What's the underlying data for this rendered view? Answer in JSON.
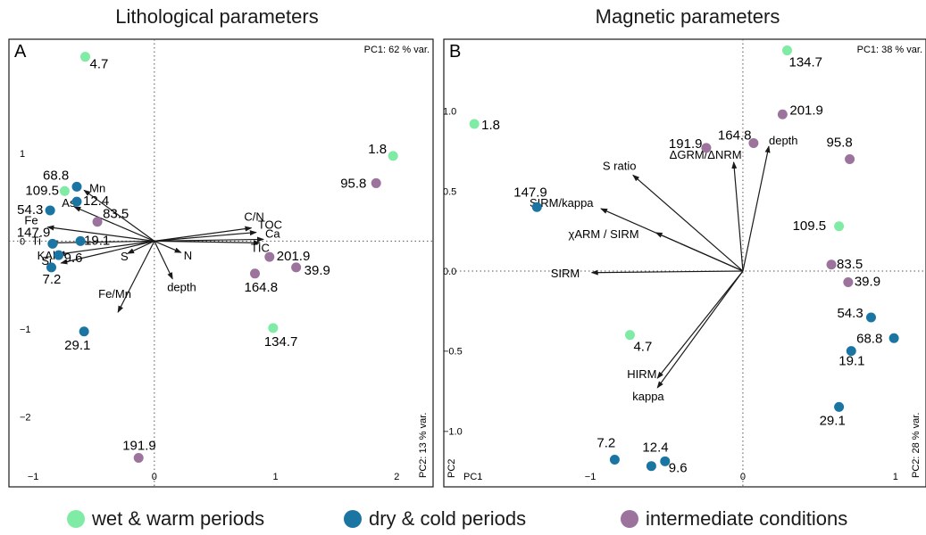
{
  "legend": {
    "wet": {
      "label": "wet & warm periods",
      "color": "#7FEBA5"
    },
    "dry": {
      "label": "dry & cold periods",
      "color": "#1B75A3"
    },
    "int": {
      "label": "intermediate conditions",
      "color": "#9B739C"
    }
  },
  "chart_data": [
    {
      "type": "scatter",
      "panel": "A",
      "title": "Lithological parameters",
      "pc1_label": "PC1: 62 % var.",
      "pc2_label": "PC2: 13 % var.",
      "xlim": [
        -1.2,
        2.3
      ],
      "ylim": [
        -2.8,
        2.3
      ],
      "xticks": [
        {
          "v": -1,
          "t": "−1"
        },
        {
          "v": 0,
          "t": "0"
        },
        {
          "v": 1,
          "t": "1"
        },
        {
          "v": 2,
          "t": "2"
        }
      ],
      "yticks": [
        {
          "v": 1,
          "t": "1"
        },
        {
          "v": 0,
          "t": "0"
        },
        {
          "v": -1,
          "t": "−1"
        },
        {
          "v": -2,
          "t": "−2"
        }
      ],
      "points": [
        {
          "label": "4.7",
          "x": -0.57,
          "y": 2.1,
          "group": "wet"
        },
        {
          "label": "1.8",
          "x": 1.97,
          "y": 0.97,
          "group": "wet"
        },
        {
          "label": "109.5",
          "x": -0.74,
          "y": 0.57,
          "group": "wet"
        },
        {
          "label": "134.7",
          "x": 0.98,
          "y": -0.99,
          "group": "wet"
        },
        {
          "label": "68.8",
          "x": -0.64,
          "y": 0.62,
          "group": "dry"
        },
        {
          "label": "54.3",
          "x": -0.86,
          "y": 0.35,
          "group": "dry"
        },
        {
          "label": "12.4",
          "x": -0.64,
          "y": 0.45,
          "group": "dry"
        },
        {
          "label": "147.9",
          "x": -0.84,
          "y": -0.03,
          "group": "dry"
        },
        {
          "label": "19.1",
          "x": -0.61,
          "y": 0.0,
          "group": "dry"
        },
        {
          "label": "9.6",
          "x": -0.79,
          "y": -0.16,
          "group": "dry"
        },
        {
          "label": "7.2",
          "x": -0.85,
          "y": -0.3,
          "group": "dry"
        },
        {
          "label": "29.1",
          "x": -0.58,
          "y": -1.03,
          "group": "dry"
        },
        {
          "label": "83.5",
          "x": -0.47,
          "y": 0.22,
          "group": "int"
        },
        {
          "label": "95.8",
          "x": 1.83,
          "y": 0.66,
          "group": "int"
        },
        {
          "label": "201.9",
          "x": 0.95,
          "y": -0.18,
          "group": "int"
        },
        {
          "label": "39.9",
          "x": 1.17,
          "y": -0.3,
          "group": "int"
        },
        {
          "label": "164.8",
          "x": 0.83,
          "y": -0.37,
          "group": "int"
        },
        {
          "label": "191.9",
          "x": -0.13,
          "y": -2.47,
          "group": "int"
        }
      ],
      "vectors": [
        {
          "label": "Mn",
          "x": -0.58,
          "y": 0.58
        },
        {
          "label": "As",
          "x": -0.66,
          "y": 0.39
        },
        {
          "label": "Fe",
          "x": -0.88,
          "y": 0.16
        },
        {
          "label": "Ti",
          "x": -0.85,
          "y": -0.02
        },
        {
          "label": "KAl",
          "x": -0.79,
          "y": -0.15
        },
        {
          "label": "Si",
          "x": -0.77,
          "y": -0.25
        },
        {
          "label": "S",
          "x": -0.22,
          "y": -0.14
        },
        {
          "label": "N",
          "x": 0.22,
          "y": -0.13
        },
        {
          "label": "depth",
          "x": 0.15,
          "y": -0.43
        },
        {
          "label": "Fe/Mn",
          "x": -0.3,
          "y": -0.81
        },
        {
          "label": "C/N",
          "x": 0.8,
          "y": 0.15
        },
        {
          "label": "TOC",
          "x": 0.84,
          "y": 0.1
        },
        {
          "label": "Ca",
          "x": 0.9,
          "y": 0.02
        },
        {
          "label": "TIC",
          "x": 0.87,
          "y": -0.02
        }
      ]
    },
    {
      "type": "scatter",
      "panel": "B",
      "title": "Magnetic parameters",
      "pc1_label": "PC1: 38 % var.",
      "pc2_label": "PC2: 28 % var.",
      "axis_x": "PC1",
      "axis_y": "PC2",
      "xlim": [
        -1.96,
        1.2
      ],
      "ylim": [
        -1.35,
        1.45
      ],
      "xticks": [
        {
          "v": -1,
          "t": "−1"
        },
        {
          "v": 0,
          "t": "0"
        },
        {
          "v": 1,
          "t": "1"
        }
      ],
      "yticks": [
        {
          "v": 1,
          "t": "1.0"
        },
        {
          "v": 0.5,
          "t": "0.5"
        },
        {
          "v": 0,
          "t": "0.0"
        },
        {
          "v": -0.5,
          "t": "−0.5"
        },
        {
          "v": -1,
          "t": "−1.0"
        }
      ],
      "points": [
        {
          "label": "134.7",
          "x": 0.29,
          "y": 1.38,
          "group": "wet"
        },
        {
          "label": "1.8",
          "x": -1.76,
          "y": 0.92,
          "group": "wet"
        },
        {
          "label": "109.5",
          "x": 0.63,
          "y": 0.28,
          "group": "wet"
        },
        {
          "label": "4.7",
          "x": -0.74,
          "y": -0.4,
          "group": "wet"
        },
        {
          "label": "147.9",
          "x": -1.35,
          "y": 0.4,
          "group": "dry"
        },
        {
          "label": "54.3",
          "x": 0.84,
          "y": -0.29,
          "group": "dry"
        },
        {
          "label": "68.8",
          "x": 0.99,
          "y": -0.42,
          "group": "dry"
        },
        {
          "label": "19.1",
          "x": 0.71,
          "y": -0.5,
          "group": "dry"
        },
        {
          "label": "29.1",
          "x": 0.63,
          "y": -0.85,
          "group": "dry"
        },
        {
          "label": "7.2",
          "x": -0.84,
          "y": -1.18,
          "group": "dry"
        },
        {
          "label": "12.4",
          "x": -0.6,
          "y": -1.22,
          "group": "dry"
        },
        {
          "label": "9.6",
          "x": -0.51,
          "y": -1.19,
          "group": "dry"
        },
        {
          "label": "201.9",
          "x": 0.26,
          "y": 0.98,
          "group": "int"
        },
        {
          "label": "191.9",
          "x": -0.24,
          "y": 0.77,
          "group": "int"
        },
        {
          "label": "164.8",
          "x": 0.07,
          "y": 0.8,
          "group": "int"
        },
        {
          "label": "95.8",
          "x": 0.7,
          "y": 0.7,
          "group": "int"
        },
        {
          "label": "83.5",
          "x": 0.58,
          "y": 0.04,
          "group": "int"
        },
        {
          "label": "39.9",
          "x": 0.69,
          "y": -0.07,
          "group": "int"
        }
      ],
      "vectors": [
        {
          "label": "depth",
          "x": 0.17,
          "y": 0.78
        },
        {
          "label": "ΔGRM/ΔNRM",
          "x": -0.06,
          "y": 0.68
        },
        {
          "label": "S ratio",
          "x": -0.72,
          "y": 0.6
        },
        {
          "label": "SIRM/kappa",
          "x": -0.93,
          "y": 0.39
        },
        {
          "label": "χARM / SIRM",
          "x": -0.57,
          "y": 0.24
        },
        {
          "label": "SIRM",
          "x": -0.99,
          "y": -0.01
        },
        {
          "label": "HIRM",
          "x": -0.56,
          "y": -0.67
        },
        {
          "label": "kappa",
          "x": -0.56,
          "y": -0.73
        }
      ]
    }
  ]
}
